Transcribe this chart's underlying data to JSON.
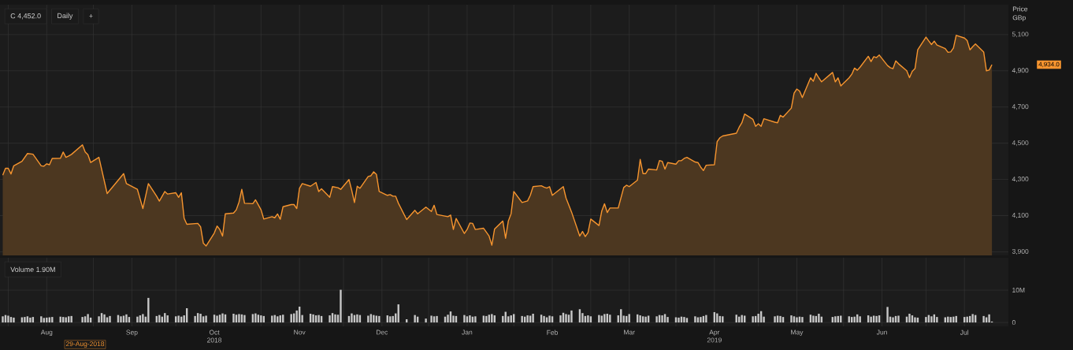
{
  "chart_data": [
    {
      "type": "area",
      "ylabel": "Price GBp",
      "x": [
        "2018-07-30",
        "2018-07-31",
        "2018-08-01",
        "2018-08-02",
        "2018-08-03",
        "2018-08-06",
        "2018-08-08",
        "2018-08-10",
        "2018-08-13",
        "2018-08-14",
        "2018-08-15",
        "2018-08-16",
        "2018-08-17",
        "2018-08-20",
        "2018-08-21",
        "2018-08-22",
        "2018-08-23",
        "2018-08-24",
        "2018-08-28",
        "2018-08-29",
        "2018-08-30",
        "2018-08-31",
        "2018-09-03",
        "2018-09-06",
        "2018-09-12",
        "2018-09-13",
        "2018-09-17",
        "2018-09-19",
        "2018-09-21",
        "2018-09-24",
        "2018-09-25",
        "2018-09-27",
        "2018-09-28",
        "2018-10-01",
        "2018-10-02",
        "2018-10-03",
        "2018-10-04",
        "2018-10-05",
        "2018-10-09",
        "2018-10-10",
        "2018-10-11",
        "2018-10-12",
        "2018-10-15",
        "2018-10-16",
        "2018-10-17",
        "2018-10-18",
        "2018-10-19",
        "2018-10-22",
        "2018-10-23",
        "2018-10-24",
        "2018-10-25",
        "2018-10-26",
        "2018-10-29",
        "2018-10-30",
        "2018-11-01",
        "2018-11-02",
        "2018-11-05",
        "2018-11-06",
        "2018-11-07",
        "2018-11-08",
        "2018-11-09",
        "2018-11-12",
        "2018-11-13",
        "2018-11-14",
        "2018-11-15",
        "2018-11-16",
        "2018-11-19",
        "2018-11-21",
        "2018-11-22",
        "2018-11-23",
        "2018-11-26",
        "2018-11-27",
        "2018-11-29",
        "2018-11-30",
        "2018-12-03",
        "2018-12-04",
        "2018-12-05",
        "2018-12-06",
        "2018-12-07",
        "2018-12-10",
        "2018-12-11",
        "2018-12-12",
        "2018-12-13",
        "2018-12-14",
        "2018-12-17",
        "2018-12-18",
        "2018-12-19",
        "2018-12-20",
        "2018-12-21",
        "2018-12-24",
        "2018-12-27",
        "2018-12-28",
        "2018-12-31",
        "2019-01-02",
        "2019-01-03",
        "2019-01-04",
        "2019-01-08",
        "2019-01-09",
        "2019-01-10",
        "2019-01-11",
        "2019-01-14",
        "2019-01-15",
        "2019-01-16",
        "2019-01-17",
        "2019-01-18",
        "2019-01-21",
        "2019-01-23",
        "2019-01-24",
        "2019-01-25",
        "2019-01-28",
        "2019-01-29",
        "2019-01-30",
        "2019-01-31",
        "2019-02-01",
        "2019-02-04",
        "2019-02-06",
        "2019-02-07",
        "2019-02-08",
        "2019-02-11",
        "2019-02-12",
        "2019-02-13",
        "2019-02-14",
        "2019-02-15",
        "2019-02-19",
        "2019-02-20",
        "2019-02-22",
        "2019-02-25",
        "2019-02-26",
        "2019-02-27",
        "2019-02-28",
        "2019-03-01",
        "2019-03-04",
        "2019-03-05",
        "2019-03-06",
        "2019-03-07",
        "2019-03-08",
        "2019-03-11",
        "2019-03-13",
        "2019-03-14",
        "2019-03-15",
        "2019-03-18",
        "2019-03-19",
        "2019-03-20",
        "2019-03-21",
        "2019-03-22",
        "2019-03-25",
        "2019-03-26",
        "2019-03-27",
        "2019-03-28",
        "2019-03-29",
        "2019-04-01",
        "2019-04-02",
        "2019-04-03",
        "2019-04-04",
        "2019-04-05",
        "2019-04-08",
        "2019-04-09",
        "2019-04-10",
        "2019-04-11",
        "2019-04-12",
        "2019-04-15",
        "2019-04-16",
        "2019-04-17",
        "2019-04-18",
        "2019-04-23",
        "2019-04-24",
        "2019-04-25",
        "2019-04-26",
        "2019-04-29",
        "2019-04-30",
        "2019-05-01",
        "2019-05-02",
        "2019-05-03",
        "2019-05-07",
        "2019-05-08",
        "2019-05-09",
        "2019-05-10",
        "2019-05-13",
        "2019-05-14",
        "2019-05-15",
        "2019-05-16",
        "2019-05-17",
        "2019-05-20",
        "2019-05-21",
        "2019-05-22",
        "2019-05-23",
        "2019-05-24",
        "2019-05-28",
        "2019-05-29",
        "2019-05-30",
        "2019-05-31",
        "2019-06-03",
        "2019-06-04",
        "2019-06-05",
        "2019-06-06",
        "2019-06-07",
        "2019-06-10",
        "2019-06-11",
        "2019-06-12",
        "2019-06-13",
        "2019-06-14",
        "2019-06-17",
        "2019-06-18",
        "2019-06-19",
        "2019-06-20",
        "2019-06-21",
        "2019-06-24",
        "2019-06-25",
        "2019-06-26",
        "2019-06-27",
        "2019-06-28",
        "2019-07-01",
        "2019-07-02",
        "2019-07-03",
        "2019-07-04",
        "2019-07-05",
        "2019-07-08",
        "2019-07-09",
        "2019-07-10",
        "2019-07-11",
        "2019-07-12",
        "2019-07-15",
        "2019-07-16",
        "2019-07-17",
        "2019-07-18",
        "2019-07-19",
        "2019-07-22",
        "2019-07-23",
        "2019-07-24",
        "2019-07-25"
      ],
      "series": [
        {
          "color": "#f7952f",
          "values": [
            4323,
            4361,
            4361,
            4330,
            4375,
            4400,
            4443,
            4439,
            4375,
            4373,
            4386,
            4381,
            4416,
            4417,
            4451,
            4422,
            4429,
            4438,
            4491,
            4452,
            4436,
            4393,
            4422,
            4222,
            4332,
            4277,
            4245,
            4139,
            4277,
            4207,
            4180,
            4233,
            4219,
            4226,
            4201,
            4226,
            4086,
            4052,
            4057,
            4038,
            3947,
            3932,
            4004,
            4042,
            4023,
            3987,
            4110,
            4114,
            4132,
            4175,
            4245,
            4168,
            4166,
            4187,
            4132,
            4081,
            4094,
            4088,
            4109,
            4080,
            4149,
            4161,
            4161,
            4139,
            4251,
            4277,
            4262,
            4283,
            4233,
            4248,
            4201,
            4260,
            4254,
            4245,
            4299,
            4240,
            4172,
            4262,
            4251,
            4316,
            4320,
            4342,
            4327,
            4233,
            4212,
            4216,
            4207,
            4207,
            4168,
            4078,
            4129,
            4110,
            4147,
            4123,
            4157,
            4106,
            4094,
            4103,
            4023,
            4084,
            4001,
            4023,
            4059,
            4057,
            4023,
            4030,
            3987,
            3936,
            4026,
            4070,
            3975,
            4070,
            4110,
            4233,
            4172,
            4181,
            4212,
            4260,
            4265,
            4257,
            4252,
            4260,
            4212,
            4260,
            4197,
            4120,
            3987,
            4012,
            3984,
            4006,
            4081,
            4045,
            4125,
            4165,
            4117,
            4142,
            4142,
            4255,
            4268,
            4260,
            4296,
            4410,
            4332,
            4332,
            4357,
            4352,
            4404,
            4400,
            4357,
            4393,
            4384,
            4403,
            4404,
            4416,
            4422,
            4396,
            4393,
            4368,
            4349,
            4378,
            4381,
            4509,
            4530,
            4540,
            4555,
            4588,
            4613,
            4661,
            4632,
            4593,
            4607,
            4593,
            4635,
            4616,
            4613,
            4654,
            4644,
            4694,
            4777,
            4799,
            4788,
            4752,
            4861,
            4842,
            4886,
            4861,
            4839,
            4891,
            4839,
            4861,
            4816,
            4861,
            4881,
            4915,
            4903,
            4920,
            4980,
            4951,
            4978,
            4973,
            4987,
            4929,
            4917,
            4912,
            4955,
            4939,
            4900,
            4862,
            4897,
            4912,
            5016,
            5086,
            5065,
            5045,
            5064,
            5042,
            5023,
            5002,
            5004,
            5026,
            5096,
            5081,
            5067,
            5016,
            5033,
            5048,
            5004,
            4900,
            4904,
            4934
          ]
        }
      ],
      "xlim": [
        "2018-07-29",
        "2019-07-31"
      ],
      "ylim": [
        3880,
        5265
      ],
      "xticks": [
        {
          "value": "2018-08-01",
          "label": null
        },
        {
          "value": "2018-08-15",
          "label": null
        },
        {
          "value": "2018-09-01",
          "label": null
        },
        {
          "value": "2018-09-15",
          "label": null
        },
        {
          "value": "2018-10-01",
          "label": null
        },
        {
          "value": "2018-10-15",
          "label": null
        },
        {
          "value": "2018-11-01",
          "label": null
        },
        {
          "value": "2018-11-15",
          "label": null
        },
        {
          "value": "2018-12-01",
          "label": null
        },
        {
          "value": "2018-12-15",
          "label": null
        },
        {
          "value": "2019-01-01",
          "label": null
        },
        {
          "value": "2019-01-15",
          "label": null
        },
        {
          "value": "2019-02-01",
          "label": null
        },
        {
          "value": "2019-02-15",
          "label": null
        },
        {
          "value": "2019-03-01",
          "label": null
        },
        {
          "value": "2019-03-15",
          "label": null
        },
        {
          "value": "2019-04-01",
          "label": null
        },
        {
          "value": "2019-04-15",
          "label": null
        },
        {
          "value": "2019-05-01",
          "label": null
        },
        {
          "value": "2019-05-15",
          "label": null
        },
        {
          "value": "2019-06-01",
          "label": null
        },
        {
          "value": "2019-06-15",
          "label": null
        },
        {
          "value": "2019-07-01",
          "label": null
        },
        {
          "value": "2019-07-15",
          "label": null
        }
      ],
      "yticks": [
        {
          "value": 3900,
          "label": "3,900"
        },
        {
          "value": 4100,
          "label": "4,100"
        },
        {
          "value": 4300,
          "label": "4,300"
        },
        {
          "value": 4500,
          "label": "4,500"
        },
        {
          "value": 4700,
          "label": "4,700"
        },
        {
          "value": 4900,
          "label": "4,900"
        },
        {
          "value": 5100,
          "label": "5,100"
        }
      ],
      "grid": true,
      "tick_labels": "y",
      "annotations": [
        "C 4,452.0",
        "Daily",
        "+",
        "4,934.0"
      ]
    },
    {
      "type": "bar",
      "x": [
        "2018-07-30",
        "2018-07-31",
        "2018-08-01",
        "2018-08-02",
        "2018-08-03",
        "2018-08-06",
        "2018-08-07",
        "2018-08-08",
        "2018-08-09",
        "2018-08-10",
        "2018-08-13",
        "2018-08-14",
        "2018-08-15",
        "2018-08-16",
        "2018-08-17",
        "2018-08-20",
        "2018-08-21",
        "2018-08-22",
        "2018-08-23",
        "2018-08-24",
        "2018-08-28",
        "2018-08-29",
        "2018-08-30",
        "2018-08-31",
        "2018-09-03",
        "2018-09-04",
        "2018-09-05",
        "2018-09-06",
        "2018-09-07",
        "2018-09-10",
        "2018-09-11",
        "2018-09-12",
        "2018-09-13",
        "2018-09-14",
        "2018-09-17",
        "2018-09-18",
        "2018-09-19",
        "2018-09-20",
        "2018-09-21",
        "2018-09-24",
        "2018-09-25",
        "2018-09-26",
        "2018-09-27",
        "2018-09-28",
        "2018-10-01",
        "2018-10-02",
        "2018-10-03",
        "2018-10-04",
        "2018-10-05",
        "2018-10-08",
        "2018-10-09",
        "2018-10-10",
        "2018-10-11",
        "2018-10-12",
        "2018-10-15",
        "2018-10-16",
        "2018-10-17",
        "2018-10-18",
        "2018-10-19",
        "2018-10-22",
        "2018-10-23",
        "2018-10-24",
        "2018-10-25",
        "2018-10-26",
        "2018-10-29",
        "2018-10-30",
        "2018-10-31",
        "2018-11-01",
        "2018-11-02",
        "2018-11-05",
        "2018-11-06",
        "2018-11-07",
        "2018-11-08",
        "2018-11-09",
        "2018-11-12",
        "2018-11-13",
        "2018-11-14",
        "2018-11-15",
        "2018-11-16",
        "2018-11-19",
        "2018-11-20",
        "2018-11-21",
        "2018-11-22",
        "2018-11-23",
        "2018-11-26",
        "2018-11-27",
        "2018-11-28",
        "2018-11-29",
        "2018-11-30",
        "2018-12-03",
        "2018-12-04",
        "2018-12-05",
        "2018-12-06",
        "2018-12-07",
        "2018-12-10",
        "2018-12-11",
        "2018-12-12",
        "2018-12-13",
        "2018-12-14",
        "2018-12-17",
        "2018-12-18",
        "2018-12-19",
        "2018-12-20",
        "2018-12-21",
        "2018-12-24",
        "2018-12-27",
        "2018-12-28",
        "2018-12-31",
        "2019-01-02",
        "2019-01-03",
        "2019-01-04",
        "2019-01-07",
        "2019-01-08",
        "2019-01-09",
        "2019-01-10",
        "2019-01-11",
        "2019-01-14",
        "2019-01-15",
        "2019-01-16",
        "2019-01-17",
        "2019-01-18",
        "2019-01-21",
        "2019-01-22",
        "2019-01-23",
        "2019-01-24",
        "2019-01-25",
        "2019-01-28",
        "2019-01-29",
        "2019-01-30",
        "2019-01-31",
        "2019-02-01",
        "2019-02-04",
        "2019-02-05",
        "2019-02-06",
        "2019-02-07",
        "2019-02-08",
        "2019-02-11",
        "2019-02-12",
        "2019-02-13",
        "2019-02-14",
        "2019-02-15",
        "2019-02-18",
        "2019-02-19",
        "2019-02-20",
        "2019-02-21",
        "2019-02-22",
        "2019-02-25",
        "2019-02-26",
        "2019-02-27",
        "2019-02-28",
        "2019-03-01",
        "2019-03-04",
        "2019-03-05",
        "2019-03-06",
        "2019-03-07",
        "2019-03-08",
        "2019-03-11",
        "2019-03-12",
        "2019-03-13",
        "2019-03-14",
        "2019-03-15",
        "2019-03-18",
        "2019-03-19",
        "2019-03-20",
        "2019-03-21",
        "2019-03-22",
        "2019-03-25",
        "2019-03-26",
        "2019-03-27",
        "2019-03-28",
        "2019-03-29",
        "2019-04-01",
        "2019-04-02",
        "2019-04-03",
        "2019-04-04",
        "2019-04-05",
        "2019-04-08",
        "2019-04-09",
        "2019-04-10",
        "2019-04-11",
        "2019-04-12",
        "2019-04-15",
        "2019-04-16",
        "2019-04-17",
        "2019-04-18",
        "2019-04-23",
        "2019-04-24",
        "2019-04-25",
        "2019-04-26",
        "2019-04-29",
        "2019-04-30",
        "2019-05-01",
        "2019-05-02",
        "2019-05-03",
        "2019-05-07",
        "2019-05-08",
        "2019-05-09",
        "2019-05-10",
        "2019-05-13",
        "2019-05-14",
        "2019-05-15",
        "2019-05-16",
        "2019-05-17",
        "2019-05-20",
        "2019-05-21",
        "2019-05-22",
        "2019-05-23",
        "2019-05-24",
        "2019-05-28",
        "2019-05-29",
        "2019-05-30",
        "2019-05-31",
        "2019-06-03",
        "2019-06-04",
        "2019-06-05",
        "2019-06-06",
        "2019-06-07",
        "2019-06-10",
        "2019-06-11",
        "2019-06-12",
        "2019-06-13",
        "2019-06-14",
        "2019-06-17",
        "2019-06-18",
        "2019-06-19",
        "2019-06-20",
        "2019-06-21",
        "2019-06-24",
        "2019-06-25",
        "2019-06-26",
        "2019-06-27",
        "2019-06-28",
        "2019-07-01",
        "2019-07-02",
        "2019-07-03",
        "2019-07-04",
        "2019-07-05",
        "2019-07-08",
        "2019-07-09",
        "2019-07-10",
        "2019-07-11",
        "2019-07-12",
        "2019-07-15",
        "2019-07-16",
        "2019-07-17",
        "2019-07-18",
        "2019-07-19",
        "2019-07-22",
        "2019-07-23",
        "2019-07-24",
        "2019-07-25"
      ],
      "series": [
        {
          "color": "#c8c8c8",
          "values": [
            1.9,
            2.3,
            2.1,
            1.7,
            1.5,
            1.6,
            1.7,
            1.9,
            1.5,
            1.7,
            1.9,
            1.4,
            1.5,
            1.6,
            1.7,
            1.8,
            1.7,
            1.6,
            1.9,
            2.0,
            1.7,
            1.9,
            2.6,
            1.5,
            1.9,
            2.9,
            2.5,
            1.6,
            2.0,
            2.3,
            1.9,
            2.1,
            2.5,
            1.7,
            1.8,
            2.2,
            2.6,
            1.8,
            7.6,
            2.0,
            2.3,
            1.8,
            2.9,
            2.2,
            1.9,
            2.1,
            1.8,
            2.2,
            4.4,
            2.0,
            2.9,
            2.7,
            1.9,
            2.1,
            2.4,
            2.1,
            2.4,
            2.8,
            2.5,
            2.7,
            2.4,
            2.6,
            2.5,
            2.3,
            2.6,
            2.8,
            2.4,
            2.2,
            2.0,
            2.1,
            2.3,
            1.9,
            2.2,
            2.4,
            2.6,
            2.8,
            3.7,
            4.9,
            2.3,
            2.7,
            2.5,
            2.2,
            2.3,
            2.0,
            2.2,
            2.9,
            2.5,
            2.4,
            10.1,
            2.0,
            2.8,
            2.3,
            2.5,
            2.3,
            2.1,
            2.6,
            2.3,
            2.1,
            2.0,
            2.2,
            1.9,
            2.0,
            2.8,
            5.6,
            1.0,
            2.3,
            1.8,
            1.2,
            2.1,
            1.9,
            2.0,
            1.8,
            2.4,
            3.4,
            2.1,
            2.0,
            2.3,
            1.9,
            2.2,
            1.8,
            1.9,
            2.1,
            2.0,
            2.4,
            2.6,
            2.2,
            2.0,
            3.3,
            1.9,
            2.2,
            2.6,
            2.0,
            1.8,
            2.2,
            2.1,
            2.7,
            2.4,
            2.0,
            1.6,
            2.1,
            1.9,
            2.2,
            3.0,
            2.6,
            2.4,
            3.7,
            4.1,
            2.9,
            2.0,
            2.2,
            1.9,
            2.3,
            2.1,
            2.6,
            2.7,
            2.4,
            2.2,
            4.1,
            2.1,
            2.0,
            2.6,
            2.5,
            2.2,
            1.9,
            1.8,
            2.1,
            1.9,
            2.3,
            2.2,
            2.6,
            1.7,
            1.6,
            1.5,
            1.8,
            1.7,
            1.4,
            1.9,
            1.6,
            1.7,
            2.0,
            2.3,
            3.2,
            2.8,
            2.0,
            1.9,
            2.4,
            1.8,
            2.3,
            2.1,
            1.9,
            2.0,
            2.7,
            3.5,
            1.8,
            1.9,
            2.1,
            2.0,
            1.7,
            2.2,
            1.9,
            1.6,
            1.8,
            1.7,
            2.4,
            2.1,
            2.0,
            2.7,
            1.8,
            1.7,
            1.9,
            2.0,
            2.1,
            1.9,
            1.7,
            1.8,
            2.5,
            1.9,
            2.2,
            1.8,
            2.1,
            2.0,
            2.2,
            4.8,
            1.8,
            1.6,
            2.0,
            2.1,
            1.8,
            2.7,
            2.2,
            1.6,
            1.5,
            1.7,
            2.3,
            1.9,
            2.5,
            1.7,
            1.6,
            1.8,
            1.7,
            1.8,
            2.0,
            1.7,
            1.8,
            2.0,
            2.6,
            2.3,
            2.0,
            1.6,
            2.5,
            0.3
          ]
        }
      ],
      "xlim": [
        "2018-07-29",
        "2019-07-31"
      ],
      "ylim": [
        -1.2,
        20
      ],
      "xticks": [
        {
          "value": "2018-08-01",
          "label": null
        },
        {
          "value": "2018-08-15",
          "label": "Aug"
        },
        {
          "value": "2018-09-01",
          "label": null
        },
        {
          "value": "2018-09-15",
          "label": "Sep"
        },
        {
          "value": "2018-10-01",
          "label": null
        },
        {
          "value": "2018-10-15",
          "label": "Oct 2018"
        },
        {
          "value": "2018-11-01",
          "label": null
        },
        {
          "value": "2018-11-15",
          "label": "Nov"
        },
        {
          "value": "2018-12-01",
          "label": null
        },
        {
          "value": "2018-12-15",
          "label": "Dec"
        },
        {
          "value": "2019-01-01",
          "label": null
        },
        {
          "value": "2019-01-15",
          "label": "Jan"
        },
        {
          "value": "2019-02-01",
          "label": null
        },
        {
          "value": "2019-02-15",
          "label": "Feb"
        },
        {
          "value": "2019-03-01",
          "label": null
        },
        {
          "value": "2019-03-15",
          "label": "Mar"
        },
        {
          "value": "2019-04-01",
          "label": null
        },
        {
          "value": "2019-04-15",
          "label": "Apr 2019"
        },
        {
          "value": "2019-05-01",
          "label": null
        },
        {
          "value": "2019-05-15",
          "label": "May"
        },
        {
          "value": "2019-06-01",
          "label": null
        },
        {
          "value": "2019-06-15",
          "label": "Jun"
        },
        {
          "value": "2019-07-01",
          "label": null
        },
        {
          "value": "2019-07-15",
          "label": "Jul"
        }
      ],
      "yticks": [
        0,
        {
          "value": 10,
          "label": "10M"
        }
      ],
      "grid": true,
      "annotations": [
        "Volume 1.90M",
        "29-Aug-2018"
      ]
    }
  ]
}
